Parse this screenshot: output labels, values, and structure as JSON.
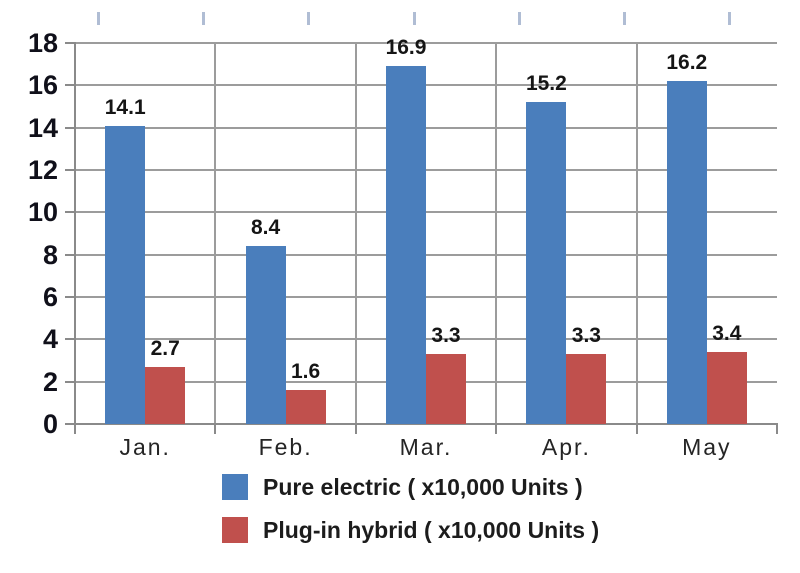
{
  "chart_data": {
    "type": "bar",
    "categories": [
      "Jan.",
      "Feb.",
      "Mar.",
      "Apr.",
      "May"
    ],
    "series": [
      {
        "name": "Pure electric ( x10,000 Units )",
        "color": "#4A7EBC",
        "values": [
          14.1,
          8.4,
          16.9,
          15.2,
          16.2
        ]
      },
      {
        "name": "Plug-in hybrid ( x10,000 Units )",
        "color": "#C0504D",
        "values": [
          2.7,
          1.6,
          3.3,
          3.3,
          3.4
        ]
      }
    ],
    "title": "",
    "xlabel": "",
    "ylabel": "",
    "ylim": [
      0,
      18
    ],
    "ytick_step": 2,
    "yticks": [
      0,
      2,
      4,
      6,
      8,
      10,
      12,
      14,
      16,
      18
    ],
    "grid": true,
    "value_labels": true,
    "legend_position": "bottom"
  },
  "colors": {
    "background": "#ffffff",
    "gridline": "#9c9c9c",
    "axis": "#8a8a8a",
    "top_ticks": "#b0bdd4",
    "text": "#151515"
  }
}
